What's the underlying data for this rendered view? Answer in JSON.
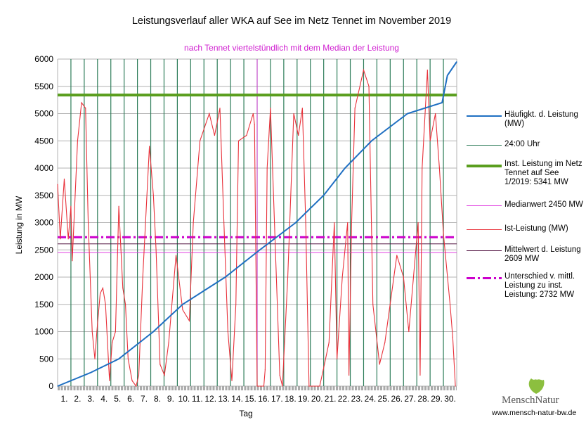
{
  "chart_data": {
    "type": "line",
    "title": "Leistungsverlauf aller WKA auf See im Netz Tennet im November 2019",
    "subtitle": "nach Tennet viertelstündlich mit dem Median der Leistung",
    "xlabel": "Tag",
    "ylabel": "Leistung in MW",
    "ylim": [
      0,
      6000
    ],
    "xlim": [
      0,
      30
    ],
    "yticks": [
      0,
      500,
      1000,
      1500,
      2000,
      2500,
      3000,
      3500,
      4000,
      4500,
      5000,
      5500,
      6000
    ],
    "xticklabels": [
      "1.",
      "2.",
      "3.",
      "4.",
      "5.",
      "6.",
      "7.",
      "8.",
      "9.",
      "10.",
      "11.",
      "12.",
      "13.",
      "14.",
      "15.",
      "16.",
      "17.",
      "18.",
      "19.",
      "20.",
      "21.",
      "22.",
      "23.",
      "24.",
      "25.",
      "26.",
      "27.",
      "28.",
      "29.",
      "30."
    ],
    "grid": true,
    "legend_position": "right",
    "hlines": [
      {
        "name": "Inst. Leistung im Netz Tennet auf See 1/2019: 5341  MW",
        "value": 5341,
        "color": "#5a9e1e",
        "style": "thick"
      },
      {
        "name": "Medianwert 2450 MW",
        "value": 2450,
        "color": "#e040e0",
        "style": "thin"
      },
      {
        "name": "Mittelwert d. Leistung 2609 MW",
        "value": 2609,
        "color": "#4b0a3a",
        "style": "thin"
      },
      {
        "name": "Unterschied v. mittl. Leistung zu inst. Leistung: 2732 MW",
        "value": 2732,
        "color": "#cc00cc",
        "style": "dashdot"
      }
    ],
    "vline_series": {
      "name": "24:00 Uhr",
      "color": "#2e7d5a",
      "days": [
        1,
        2,
        3,
        4,
        5,
        6,
        7,
        8,
        9,
        10,
        11,
        12,
        13,
        14,
        15,
        16,
        17,
        18,
        19,
        20,
        21,
        22,
        23,
        24,
        25,
        26,
        27,
        28,
        29
      ]
    },
    "median_marker_day": 15,
    "series": [
      {
        "name": "Häufigkt. d. Leistung (MW)",
        "color": "#1f6fc2",
        "points": [
          [
            0,
            0
          ],
          [
            1,
            100
          ],
          [
            2.5,
            250
          ],
          [
            4.6,
            500
          ],
          [
            7.2,
            1000
          ],
          [
            9.4,
            1500
          ],
          [
            12.6,
            2000
          ],
          [
            15.2,
            2500
          ],
          [
            17.9,
            3000
          ],
          [
            20,
            3500
          ],
          [
            21.6,
            4000
          ],
          [
            23.6,
            4500
          ],
          [
            26.3,
            5000
          ],
          [
            28.9,
            5200
          ],
          [
            29.3,
            5700
          ],
          [
            30,
            5950
          ]
        ]
      },
      {
        "name": "Ist-Leistung (MW)",
        "color": "#e8313a",
        "points": [
          [
            0,
            3700
          ],
          [
            0.2,
            2700
          ],
          [
            0.5,
            3800
          ],
          [
            0.8,
            2700
          ],
          [
            1,
            3300
          ],
          [
            1.1,
            2300
          ],
          [
            1.5,
            4500
          ],
          [
            1.8,
            5200
          ],
          [
            2.1,
            5100
          ],
          [
            2.3,
            3000
          ],
          [
            2.6,
            1000
          ],
          [
            2.8,
            500
          ],
          [
            2.95,
            1000
          ],
          [
            3.2,
            1700
          ],
          [
            3.4,
            1800
          ],
          [
            3.6,
            1500
          ],
          [
            3.9,
            100
          ],
          [
            4.1,
            800
          ],
          [
            4.35,
            1000
          ],
          [
            4.6,
            3300
          ],
          [
            4.9,
            1800
          ],
          [
            5.1,
            1500
          ],
          [
            5.3,
            500
          ],
          [
            5.6,
            100
          ],
          [
            5.9,
            0
          ],
          [
            6.1,
            200
          ],
          [
            6.4,
            2000
          ],
          [
            6.9,
            4400
          ],
          [
            7.2,
            3500
          ],
          [
            7.4,
            2500
          ],
          [
            7.7,
            400
          ],
          [
            8.03,
            200
          ],
          [
            8.35,
            800
          ],
          [
            8.9,
            2400
          ],
          [
            9.4,
            1400
          ],
          [
            9.9,
            1200
          ],
          [
            10.2,
            3000
          ],
          [
            10.7,
            4500
          ],
          [
            11.4,
            5000
          ],
          [
            11.8,
            4600
          ],
          [
            12.2,
            5100
          ],
          [
            12.5,
            3000
          ],
          [
            12.8,
            1000
          ],
          [
            13.1,
            100
          ],
          [
            13.4,
            1500
          ],
          [
            13.6,
            4500
          ],
          [
            14.2,
            4600
          ],
          [
            14.7,
            5000
          ],
          [
            14.8,
            4800
          ],
          [
            15,
            0
          ],
          [
            15.5,
            0
          ],
          [
            15.6,
            300
          ],
          [
            15.75,
            4000
          ],
          [
            16,
            5100
          ],
          [
            16.3,
            3000
          ],
          [
            16.7,
            200
          ],
          [
            16.9,
            0
          ],
          [
            17.3,
            2000
          ],
          [
            17.75,
            5000
          ],
          [
            18.1,
            4600
          ],
          [
            18.4,
            5100
          ],
          [
            18.65,
            3000
          ],
          [
            18.9,
            0
          ],
          [
            19.7,
            0
          ],
          [
            19.97,
            300
          ],
          [
            20.4,
            800
          ],
          [
            20.8,
            3000
          ],
          [
            21,
            500
          ],
          [
            21.4,
            2000
          ],
          [
            21.8,
            3000
          ],
          [
            21.9,
            200
          ],
          [
            22.1,
            3000
          ],
          [
            22.35,
            5100
          ],
          [
            23,
            5800
          ],
          [
            23.4,
            5500
          ],
          [
            23.7,
            1500
          ],
          [
            24.2,
            400
          ],
          [
            24.6,
            800
          ],
          [
            25.5,
            2400
          ],
          [
            26,
            2000
          ],
          [
            26.4,
            1000
          ],
          [
            27.1,
            3000
          ],
          [
            27.25,
            200
          ],
          [
            27.4,
            4000
          ],
          [
            27.8,
            5800
          ],
          [
            28,
            4500
          ],
          [
            28.4,
            5000
          ],
          [
            28.7,
            4000
          ],
          [
            29,
            2800
          ],
          [
            29.5,
            1500
          ],
          [
            29.7,
            900
          ],
          [
            29.9,
            0
          ]
        ]
      }
    ]
  },
  "legend": [
    {
      "label": "Häufigkt. d. Leistung (MW)",
      "color": "#1f6fc2",
      "style": "solid2"
    },
    {
      "label": "24:00 Uhr",
      "color": "#2e7d5a",
      "style": "solid1"
    },
    {
      "label": "Inst. Leistung im Netz Tennet auf See 1/2019: 5341  MW",
      "color": "#5a9e1e",
      "style": "thick"
    },
    {
      "label": "Medianwert 2450 MW",
      "color": "#e040e0",
      "style": "solid1"
    },
    {
      "label": "Ist-Leistung (MW)",
      "color": "#e8313a",
      "style": "solid1"
    },
    {
      "label": "Mittelwert d. Leistung 2609 MW",
      "color": "#4b0a3a",
      "style": "solid1"
    },
    {
      "label": "Unterschied v. mittl. Leistung zu inst. Leistung: 2732 MW",
      "color": "#cc00cc",
      "style": "dashdot"
    }
  ],
  "logo": {
    "name": "MenschNatur",
    "url_text": "www.mensch-natur-bw.de"
  }
}
